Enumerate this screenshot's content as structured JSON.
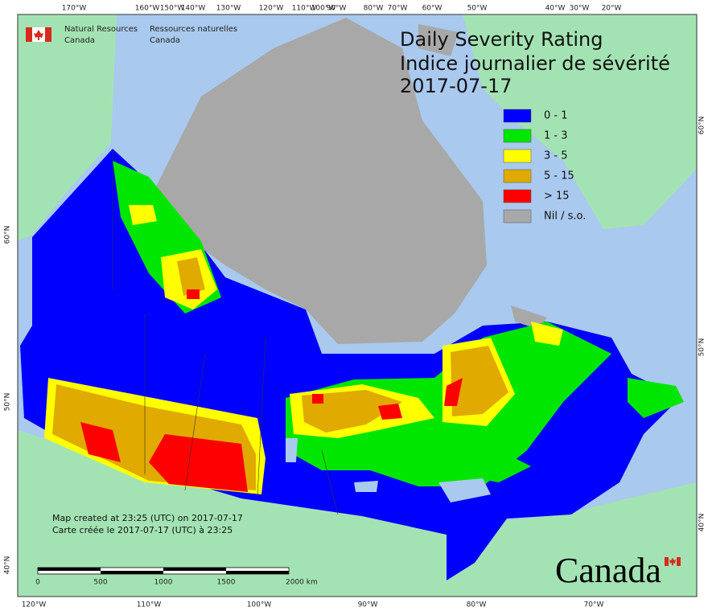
{
  "header": {
    "agency_en": [
      "Natural Resources",
      "Canada"
    ],
    "agency_fr": [
      "Ressources naturelles",
      "Canada"
    ]
  },
  "title": [
    "Daily Severity Rating",
    "Indice journalier de sévérité",
    "2017-07-17"
  ],
  "legend": [
    {
      "label": "0 - 1",
      "color": "#0000ff"
    },
    {
      "label": "1 - 3",
      "color": "#00e600"
    },
    {
      "label": "3 - 5",
      "color": "#ffff00"
    },
    {
      "label": "5 - 15",
      "color": "#e0aa00"
    },
    {
      "label": "> 15",
      "color": "#ff0000"
    },
    {
      "label": "Nil / s.o.",
      "color": "#a8a8a8"
    }
  ],
  "graticule": {
    "top": [
      "170°W",
      "160°W",
      "150°W",
      "140°W",
      "130°W",
      "120°W",
      "110°W",
      "100°W",
      "90°W",
      "80°W",
      "70°W",
      "60°W",
      "50°W",
      "40°W",
      "30°W",
      "20°W"
    ],
    "bottom": [
      "120°W",
      "110°W",
      "100°W",
      "90°W",
      "80°W",
      "70°W"
    ],
    "left": [
      "60°N",
      "50°N",
      "40°N"
    ],
    "right": [
      "60°N",
      "50°N",
      "40°N"
    ]
  },
  "credits": [
    "Map created at 23:25 (UTC) on 2017-07-17",
    "Carte créée le 2017-07-17 (UTC) à 23:25"
  ],
  "scale_bar": [
    "0",
    "500",
    "1000",
    "1500",
    "2000 km"
  ],
  "wordmark": "Canada"
}
